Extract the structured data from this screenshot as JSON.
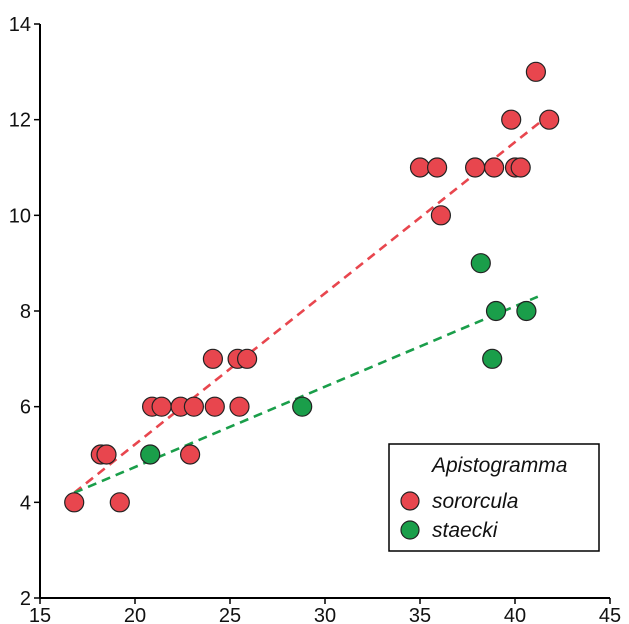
{
  "chart_data": {
    "type": "scatter",
    "title": "",
    "xlabel": "",
    "ylabel": "",
    "xlim": [
      15,
      45
    ],
    "ylim": [
      2,
      14
    ],
    "x_ticks": [
      15,
      20,
      25,
      30,
      35,
      40,
      45
    ],
    "y_ticks": [
      2,
      4,
      6,
      8,
      10,
      12,
      14
    ],
    "grid": false,
    "legend": {
      "title": "Apistogramma",
      "placement": "bottom-right"
    },
    "series": [
      {
        "name": "sororcula",
        "color": "#e8464e",
        "trendline": {
          "x": [
            16.8,
            41.8
          ],
          "y": [
            4.2,
            12.1
          ]
        },
        "points": [
          {
            "x": 16.8,
            "y": 4
          },
          {
            "x": 18.2,
            "y": 5
          },
          {
            "x": 18.5,
            "y": 5
          },
          {
            "x": 19.2,
            "y": 4
          },
          {
            "x": 20.9,
            "y": 6
          },
          {
            "x": 21.4,
            "y": 6
          },
          {
            "x": 22.4,
            "y": 6
          },
          {
            "x": 23.1,
            "y": 6
          },
          {
            "x": 22.9,
            "y": 5
          },
          {
            "x": 24.1,
            "y": 7
          },
          {
            "x": 24.2,
            "y": 6
          },
          {
            "x": 25.4,
            "y": 7
          },
          {
            "x": 25.5,
            "y": 6
          },
          {
            "x": 25.9,
            "y": 7
          },
          {
            "x": 35.0,
            "y": 11
          },
          {
            "x": 35.9,
            "y": 11
          },
          {
            "x": 36.1,
            "y": 10
          },
          {
            "x": 37.9,
            "y": 11
          },
          {
            "x": 38.9,
            "y": 11
          },
          {
            "x": 39.8,
            "y": 12
          },
          {
            "x": 40.0,
            "y": 11
          },
          {
            "x": 40.3,
            "y": 11
          },
          {
            "x": 41.1,
            "y": 13
          },
          {
            "x": 41.8,
            "y": 12
          }
        ]
      },
      {
        "name": "staecki",
        "color": "#1a9e4a",
        "trendline": {
          "x": [
            16.8,
            41.2
          ],
          "y": [
            4.2,
            8.3
          ]
        },
        "points": [
          {
            "x": 20.8,
            "y": 5
          },
          {
            "x": 28.8,
            "y": 6
          },
          {
            "x": 38.2,
            "y": 9
          },
          {
            "x": 38.8,
            "y": 7
          },
          {
            "x": 39.0,
            "y": 8
          },
          {
            "x": 40.6,
            "y": 8
          }
        ]
      }
    ]
  }
}
